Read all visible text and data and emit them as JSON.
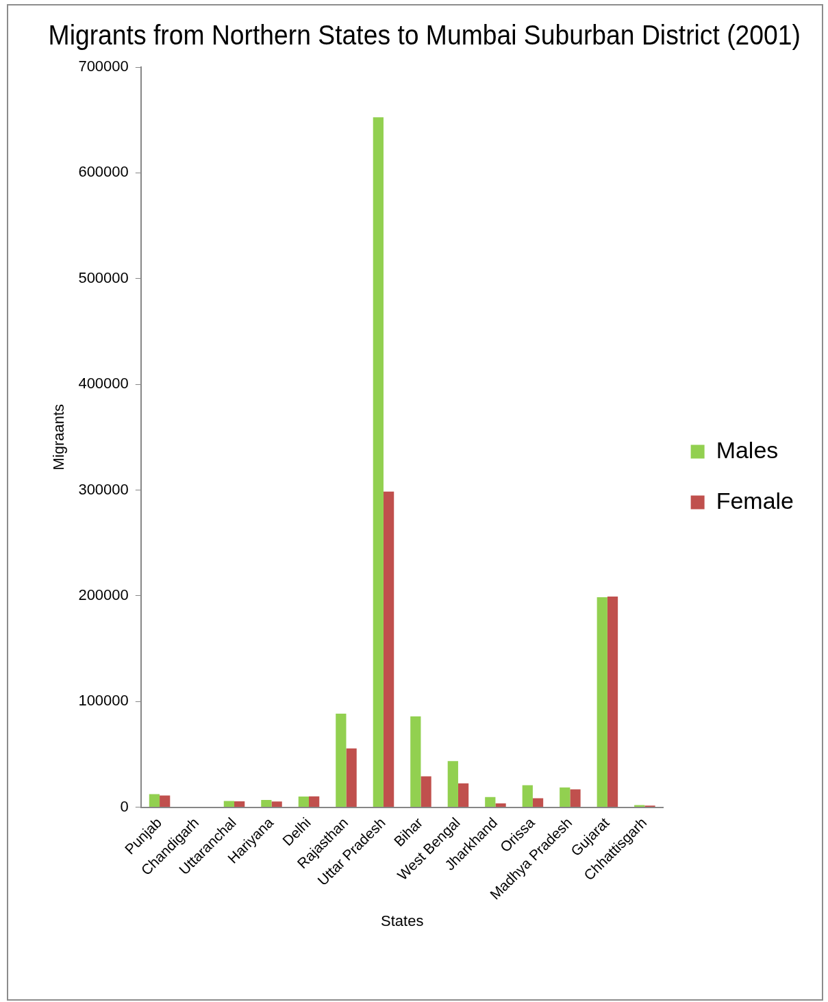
{
  "chart_data": {
    "type": "bar",
    "title": "Migrants from Northern States to Mumbai Suburban District (2001)",
    "xlabel": "States",
    "ylabel": "Migraants",
    "categories": [
      "Punjab",
      "Chandigarh",
      "Uttaranchal",
      "Hariyana",
      "Delhi",
      "Rajasthan",
      "Uttar Pradesh",
      "Bihar",
      "West Bengal",
      "Jharkhand",
      "Orissa",
      "Madhya Pradesh",
      "Gujarat",
      "Chhattisgarh"
    ],
    "series": [
      {
        "name": "Males",
        "color": "#92d050",
        "values": [
          12400,
          null,
          5800,
          6800,
          10000,
          88500,
          652500,
          85900,
          43500,
          9500,
          20700,
          18700,
          198500,
          2000
        ]
      },
      {
        "name": "Female",
        "color": "#c0504d",
        "values": [
          11000,
          null,
          5600,
          5400,
          10200,
          55500,
          298500,
          29200,
          22600,
          3600,
          8500,
          16800,
          199200,
          1500
        ]
      }
    ],
    "ylim": [
      0,
      700000
    ],
    "yticks": [
      0,
      100000,
      200000,
      300000,
      400000,
      500000,
      600000,
      700000
    ],
    "grid": false,
    "legend": "right"
  }
}
